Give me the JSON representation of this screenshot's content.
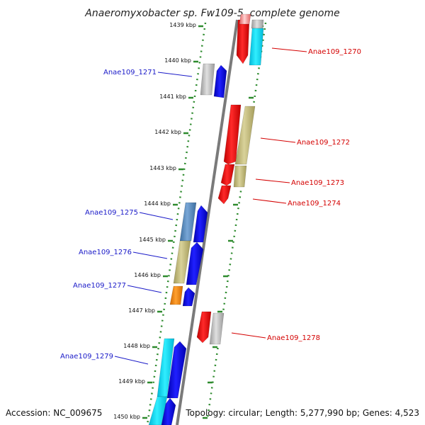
{
  "title": "Anaeromyxobacter sp. Fw109-5, complete genome",
  "footer": {
    "accession": "Accession: NC_009675",
    "summary": "Topology: circular; Length: 5,277,990 bp; Genes: 4,523"
  },
  "colors": {
    "backbone": "#808080",
    "scale_dots": "#2e8b2e",
    "forward_label": "#1a1ac8",
    "reverse_label": "#d40000"
  },
  "ticks": [
    "1439 kbp",
    "1440 kbp",
    "1441 kbp",
    "1442 kbp",
    "1443 kbp",
    "1444 kbp",
    "1445 kbp",
    "1446 kbp",
    "1447 kbp",
    "1448 kbp",
    "1449 kbp",
    "1450 kbp"
  ],
  "gene_labels": [
    {
      "id": "Anae109_1270",
      "strand": "reverse"
    },
    {
      "id": "Anae109_1271",
      "strand": "forward"
    },
    {
      "id": "Anae109_1272",
      "strand": "reverse"
    },
    {
      "id": "Anae109_1273",
      "strand": "reverse"
    },
    {
      "id": "Anae109_1274",
      "strand": "reverse"
    },
    {
      "id": "Anae109_1275",
      "strand": "forward"
    },
    {
      "id": "Anae109_1276",
      "strand": "forward"
    },
    {
      "id": "Anae109_1277",
      "strand": "forward"
    },
    {
      "id": "Anae109_1278",
      "strand": "reverse"
    },
    {
      "id": "Anae109_1279",
      "strand": "forward"
    }
  ]
}
